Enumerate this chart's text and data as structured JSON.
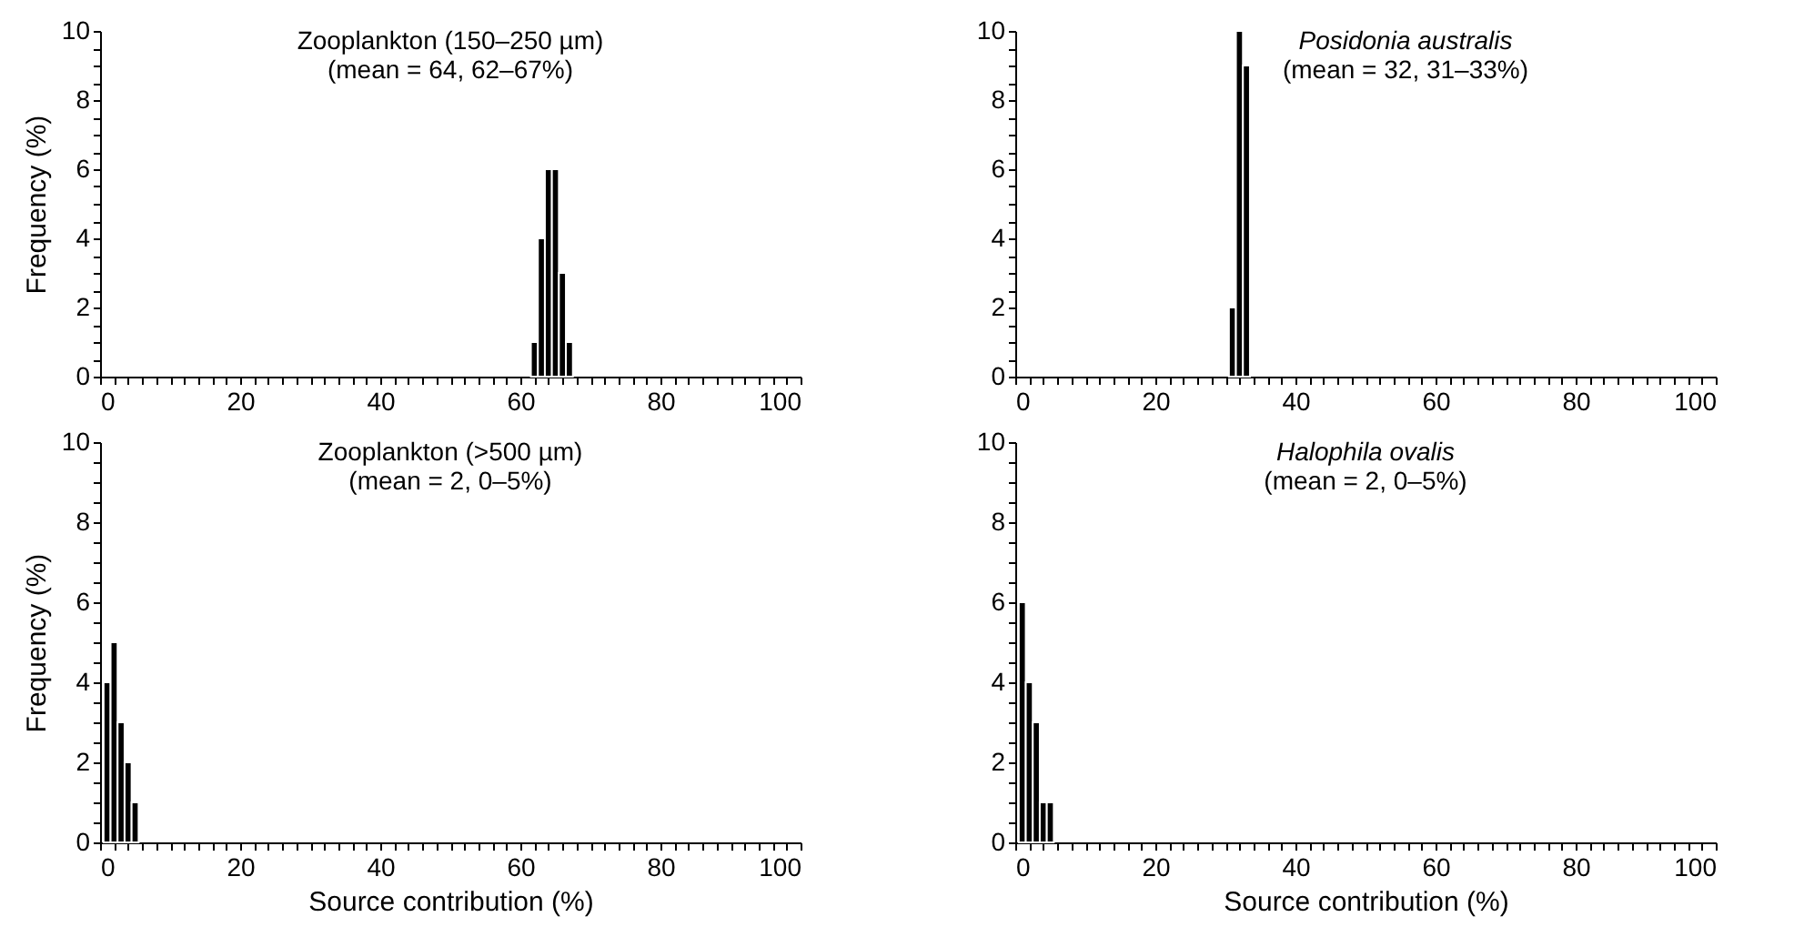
{
  "chart_data": [
    {
      "type": "histogram",
      "title": "Zooplankton (150–250 µm)",
      "subtitle": "(mean = 64, 62–67%)",
      "ylabel": "Frequency (%)",
      "bins": [
        61.5,
        62.5,
        63.5,
        64.5,
        65.5,
        66.5,
        67.5
      ],
      "values": [
        1,
        4,
        6,
        6,
        3,
        1
      ],
      "color": "#000000",
      "xlim": [
        0,
        100
      ],
      "ylim": [
        0,
        10
      ],
      "xticks": [
        0,
        {
          "value": 2,
          "label": null
        },
        {
          "value": 4,
          "label": null
        },
        {
          "value": 6,
          "label": null
        },
        {
          "value": 8,
          "label": null
        },
        {
          "value": 10,
          "label": null
        },
        {
          "value": 12,
          "label": null
        },
        {
          "value": 14,
          "label": null
        },
        {
          "value": 16,
          "label": null
        },
        {
          "value": 18,
          "label": null
        },
        20,
        {
          "value": 22,
          "label": null
        },
        {
          "value": 24,
          "label": null
        },
        {
          "value": 26,
          "label": null
        },
        {
          "value": 28,
          "label": null
        },
        {
          "value": 30,
          "label": null
        },
        {
          "value": 32,
          "label": null
        },
        {
          "value": 34,
          "label": null
        },
        {
          "value": 36,
          "label": null
        },
        {
          "value": 38,
          "label": null
        },
        40,
        {
          "value": 42,
          "label": null
        },
        {
          "value": 44,
          "label": null
        },
        {
          "value": 46,
          "label": null
        },
        {
          "value": 48,
          "label": null
        },
        {
          "value": 50,
          "label": null
        },
        {
          "value": 52,
          "label": null
        },
        {
          "value": 54,
          "label": null
        },
        {
          "value": 56,
          "label": null
        },
        {
          "value": 58,
          "label": null
        },
        60,
        {
          "value": 62,
          "label": null
        },
        {
          "value": 64,
          "label": null
        },
        {
          "value": 66,
          "label": null
        },
        {
          "value": 68,
          "label": null
        },
        {
          "value": 70,
          "label": null
        },
        {
          "value": 72,
          "label": null
        },
        {
          "value": 74,
          "label": null
        },
        {
          "value": 76,
          "label": null
        },
        {
          "value": 78,
          "label": null
        },
        80,
        {
          "value": 82,
          "label": null
        },
        {
          "value": 84,
          "label": null
        },
        {
          "value": 86,
          "label": null
        },
        {
          "value": 88,
          "label": null
        },
        {
          "value": 90,
          "label": null
        },
        {
          "value": 92,
          "label": null
        },
        {
          "value": 94,
          "label": null
        },
        {
          "value": 96,
          "label": null
        },
        {
          "value": 98,
          "label": null
        },
        100
      ],
      "yticks": [
        0,
        {
          "value": 0.5,
          "label": null
        },
        {
          "value": 1,
          "label": null
        },
        {
          "value": 1.5,
          "label": null
        },
        2,
        {
          "value": 2.5,
          "label": null
        },
        {
          "value": 3,
          "label": null
        },
        {
          "value": 3.5,
          "label": null
        },
        4,
        {
          "value": 4.5,
          "label": null
        },
        {
          "value": 5,
          "label": null
        },
        {
          "value": 5.5,
          "label": null
        },
        6,
        {
          "value": 6.5,
          "label": null
        },
        {
          "value": 7,
          "label": null
        },
        {
          "value": 7.5,
          "label": null
        },
        8,
        {
          "value": 8.5,
          "label": null
        },
        {
          "value": 9,
          "label": null
        },
        {
          "value": 9.5,
          "label": null
        },
        10
      ]
    },
    {
      "type": "histogram",
      "title": "Posidonia australis",
      "subtitle": "(mean = 32, 31–33%)",
      "bins": [
        30.5,
        31.5,
        32.5,
        33.5
      ],
      "values": [
        2,
        10,
        9
      ],
      "color": "#000000",
      "xlim": [
        0,
        100
      ],
      "ylim": [
        0,
        10
      ],
      "xticks": [
        0,
        {
          "value": 2,
          "label": null
        },
        {
          "value": 4,
          "label": null
        },
        {
          "value": 6,
          "label": null
        },
        {
          "value": 8,
          "label": null
        },
        {
          "value": 10,
          "label": null
        },
        {
          "value": 12,
          "label": null
        },
        {
          "value": 14,
          "label": null
        },
        {
          "value": 16,
          "label": null
        },
        {
          "value": 18,
          "label": null
        },
        20,
        {
          "value": 22,
          "label": null
        },
        {
          "value": 24,
          "label": null
        },
        {
          "value": 26,
          "label": null
        },
        {
          "value": 28,
          "label": null
        },
        {
          "value": 30,
          "label": null
        },
        {
          "value": 32,
          "label": null
        },
        {
          "value": 34,
          "label": null
        },
        {
          "value": 36,
          "label": null
        },
        {
          "value": 38,
          "label": null
        },
        40,
        {
          "value": 42,
          "label": null
        },
        {
          "value": 44,
          "label": null
        },
        {
          "value": 46,
          "label": null
        },
        {
          "value": 48,
          "label": null
        },
        {
          "value": 50,
          "label": null
        },
        {
          "value": 52,
          "label": null
        },
        {
          "value": 54,
          "label": null
        },
        {
          "value": 56,
          "label": null
        },
        {
          "value": 58,
          "label": null
        },
        60,
        {
          "value": 62,
          "label": null
        },
        {
          "value": 64,
          "label": null
        },
        {
          "value": 66,
          "label": null
        },
        {
          "value": 68,
          "label": null
        },
        {
          "value": 70,
          "label": null
        },
        {
          "value": 72,
          "label": null
        },
        {
          "value": 74,
          "label": null
        },
        {
          "value": 76,
          "label": null
        },
        {
          "value": 78,
          "label": null
        },
        80,
        {
          "value": 82,
          "label": null
        },
        {
          "value": 84,
          "label": null
        },
        {
          "value": 86,
          "label": null
        },
        {
          "value": 88,
          "label": null
        },
        {
          "value": 90,
          "label": null
        },
        {
          "value": 92,
          "label": null
        },
        {
          "value": 94,
          "label": null
        },
        {
          "value": 96,
          "label": null
        },
        {
          "value": 98,
          "label": null
        },
        100
      ],
      "yticks": [
        0,
        {
          "value": 0.5,
          "label": null
        },
        {
          "value": 1,
          "label": null
        },
        {
          "value": 1.5,
          "label": null
        },
        2,
        {
          "value": 2.5,
          "label": null
        },
        {
          "value": 3,
          "label": null
        },
        {
          "value": 3.5,
          "label": null
        },
        4,
        {
          "value": 4.5,
          "label": null
        },
        {
          "value": 5,
          "label": null
        },
        {
          "value": 5.5,
          "label": null
        },
        6,
        {
          "value": 6.5,
          "label": null
        },
        {
          "value": 7,
          "label": null
        },
        {
          "value": 7.5,
          "label": null
        },
        8,
        {
          "value": 8.5,
          "label": null
        },
        {
          "value": 9,
          "label": null
        },
        {
          "value": 9.5,
          "label": null
        },
        10
      ]
    },
    {
      "type": "histogram",
      "title": "Zooplankton (>500 µm)",
      "subtitle": "(mean = 2, 0–5%)",
      "xlabel": "Source contribution (%)",
      "ylabel": "Frequency (%)",
      "bins": [
        0.5,
        1.5,
        2.5,
        3.5,
        4.5,
        5.5
      ],
      "values": [
        4,
        5,
        3,
        2,
        1
      ],
      "color": "#000000",
      "xlim": [
        0,
        100
      ],
      "ylim": [
        0,
        10
      ],
      "xticks": [
        0,
        {
          "value": 2,
          "label": null
        },
        {
          "value": 4,
          "label": null
        },
        {
          "value": 6,
          "label": null
        },
        {
          "value": 8,
          "label": null
        },
        {
          "value": 10,
          "label": null
        },
        {
          "value": 12,
          "label": null
        },
        {
          "value": 14,
          "label": null
        },
        {
          "value": 16,
          "label": null
        },
        {
          "value": 18,
          "label": null
        },
        20,
        {
          "value": 22,
          "label": null
        },
        {
          "value": 24,
          "label": null
        },
        {
          "value": 26,
          "label": null
        },
        {
          "value": 28,
          "label": null
        },
        {
          "value": 30,
          "label": null
        },
        {
          "value": 32,
          "label": null
        },
        {
          "value": 34,
          "label": null
        },
        {
          "value": 36,
          "label": null
        },
        {
          "value": 38,
          "label": null
        },
        40,
        {
          "value": 42,
          "label": null
        },
        {
          "value": 44,
          "label": null
        },
        {
          "value": 46,
          "label": null
        },
        {
          "value": 48,
          "label": null
        },
        {
          "value": 50,
          "label": null
        },
        {
          "value": 52,
          "label": null
        },
        {
          "value": 54,
          "label": null
        },
        {
          "value": 56,
          "label": null
        },
        {
          "value": 58,
          "label": null
        },
        60,
        {
          "value": 62,
          "label": null
        },
        {
          "value": 64,
          "label": null
        },
        {
          "value": 66,
          "label": null
        },
        {
          "value": 68,
          "label": null
        },
        {
          "value": 70,
          "label": null
        },
        {
          "value": 72,
          "label": null
        },
        {
          "value": 74,
          "label": null
        },
        {
          "value": 76,
          "label": null
        },
        {
          "value": 78,
          "label": null
        },
        80,
        {
          "value": 82,
          "label": null
        },
        {
          "value": 84,
          "label": null
        },
        {
          "value": 86,
          "label": null
        },
        {
          "value": 88,
          "label": null
        },
        {
          "value": 90,
          "label": null
        },
        {
          "value": 92,
          "label": null
        },
        {
          "value": 94,
          "label": null
        },
        {
          "value": 96,
          "label": null
        },
        {
          "value": 98,
          "label": null
        },
        100
      ],
      "yticks": [
        0,
        {
          "value": 0.5,
          "label": null
        },
        {
          "value": 1,
          "label": null
        },
        {
          "value": 1.5,
          "label": null
        },
        2,
        {
          "value": 2.5,
          "label": null
        },
        {
          "value": 3,
          "label": null
        },
        {
          "value": 3.5,
          "label": null
        },
        4,
        {
          "value": 4.5,
          "label": null
        },
        {
          "value": 5,
          "label": null
        },
        {
          "value": 5.5,
          "label": null
        },
        6,
        {
          "value": 6.5,
          "label": null
        },
        {
          "value": 7,
          "label": null
        },
        {
          "value": 7.5,
          "label": null
        },
        8,
        {
          "value": 8.5,
          "label": null
        },
        {
          "value": 9,
          "label": null
        },
        {
          "value": 9.5,
          "label": null
        },
        10
      ]
    },
    {
      "type": "histogram",
      "title": "Halophila ovalis",
      "subtitle": "(mean = 2, 0–5%)",
      "xlabel": "Source contribution (%)",
      "bins": [
        0.5,
        1.5,
        2.5,
        3.5,
        4.5,
        5.5
      ],
      "values": [
        6,
        4,
        3,
        1,
        1
      ],
      "color": "#000000",
      "xlim": [
        0,
        100
      ],
      "ylim": [
        0,
        10
      ],
      "xticks": [
        0,
        {
          "value": 2,
          "label": null
        },
        {
          "value": 4,
          "label": null
        },
        {
          "value": 6,
          "label": null
        },
        {
          "value": 8,
          "label": null
        },
        {
          "value": 10,
          "label": null
        },
        {
          "value": 12,
          "label": null
        },
        {
          "value": 14,
          "label": null
        },
        {
          "value": 16,
          "label": null
        },
        {
          "value": 18,
          "label": null
        },
        20,
        {
          "value": 22,
          "label": null
        },
        {
          "value": 24,
          "label": null
        },
        {
          "value": 26,
          "label": null
        },
        {
          "value": 28,
          "label": null
        },
        {
          "value": 30,
          "label": null
        },
        {
          "value": 32,
          "label": null
        },
        {
          "value": 34,
          "label": null
        },
        {
          "value": 36,
          "label": null
        },
        {
          "value": 38,
          "label": null
        },
        40,
        {
          "value": 42,
          "label": null
        },
        {
          "value": 44,
          "label": null
        },
        {
          "value": 46,
          "label": null
        },
        {
          "value": 48,
          "label": null
        },
        {
          "value": 50,
          "label": null
        },
        {
          "value": 52,
          "label": null
        },
        {
          "value": 54,
          "label": null
        },
        {
          "value": 56,
          "label": null
        },
        {
          "value": 58,
          "label": null
        },
        60,
        {
          "value": 62,
          "label": null
        },
        {
          "value": 64,
          "label": null
        },
        {
          "value": 66,
          "label": null
        },
        {
          "value": 68,
          "label": null
        },
        {
          "value": 70,
          "label": null
        },
        {
          "value": 72,
          "label": null
        },
        {
          "value": 74,
          "label": null
        },
        {
          "value": 76,
          "label": null
        },
        {
          "value": 78,
          "label": null
        },
        80,
        {
          "value": 82,
          "label": null
        },
        {
          "value": 84,
          "label": null
        },
        {
          "value": 86,
          "label": null
        },
        {
          "value": 88,
          "label": null
        },
        {
          "value": 90,
          "label": null
        },
        {
          "value": 92,
          "label": null
        },
        {
          "value": 94,
          "label": null
        },
        {
          "value": 96,
          "label": null
        },
        {
          "value": 98,
          "label": null
        },
        100
      ],
      "yticks": [
        0,
        {
          "value": 0.5,
          "label": null
        },
        {
          "value": 1,
          "label": null
        },
        {
          "value": 1.5,
          "label": null
        },
        2,
        {
          "value": 2.5,
          "label": null
        },
        {
          "value": 3,
          "label": null
        },
        {
          "value": 3.5,
          "label": null
        },
        4,
        {
          "value": 4.5,
          "label": null
        },
        {
          "value": 5,
          "label": null
        },
        {
          "value": 5.5,
          "label": null
        },
        6,
        {
          "value": 6.5,
          "label": null
        },
        {
          "value": 7,
          "label": null
        },
        {
          "value": 7.5,
          "label": null
        },
        8,
        {
          "value": 8.5,
          "label": null
        },
        {
          "value": 9,
          "label": null
        },
        {
          "value": 9.5,
          "label": null
        },
        10
      ]
    }
  ]
}
